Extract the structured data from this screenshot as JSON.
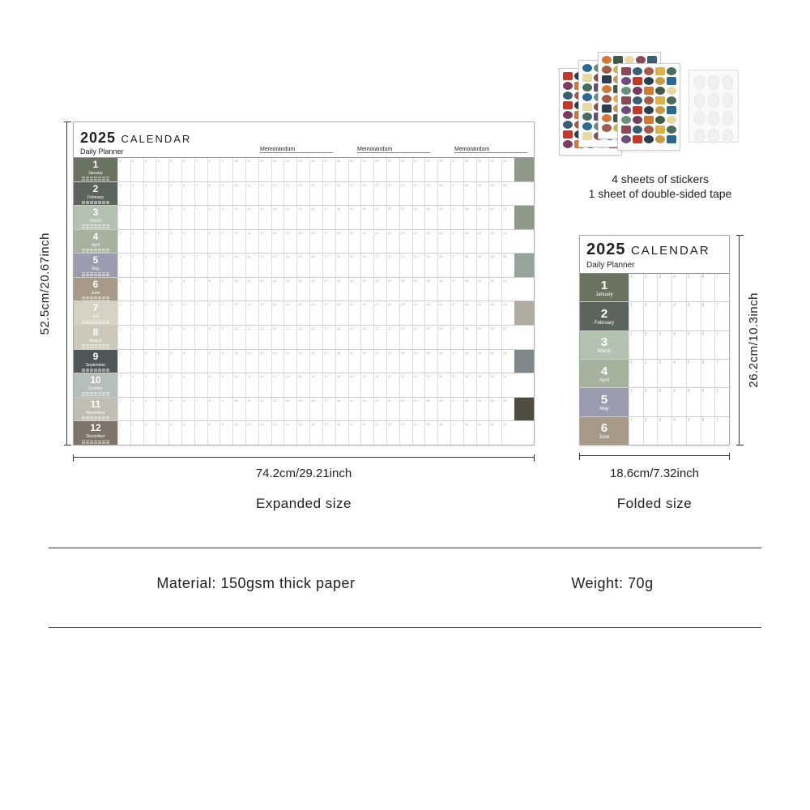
{
  "calendar": {
    "year": "2025",
    "title_word": "CALENDAR",
    "subtitle": "Daily Planner",
    "memorandum_label": "Memorandum",
    "months": [
      {
        "num": "1",
        "name": "January",
        "color": "#6a7360",
        "end": true,
        "end_color": "#8f9987"
      },
      {
        "num": "2",
        "name": "February",
        "color": "#5c645e",
        "end": false
      },
      {
        "num": "3",
        "name": "March",
        "color": "#b2c1b0",
        "end": true,
        "end_color": "#8f9987"
      },
      {
        "num": "4",
        "name": "April",
        "color": "#a5b29d",
        "end": false
      },
      {
        "num": "5",
        "name": "May",
        "color": "#9a9bae",
        "end": true,
        "end_color": "#97a49a"
      },
      {
        "num": "6",
        "name": "June",
        "color": "#a79a88",
        "end": false
      },
      {
        "num": "7",
        "name": "July",
        "color": "#d6d1c3",
        "end": true,
        "end_color": "#b1aca0"
      },
      {
        "num": "8",
        "name": "August",
        "color": "#cdc9ba",
        "end": false
      },
      {
        "num": "9",
        "name": "September",
        "color": "#4d5658",
        "end": true,
        "end_color": "#7e8789"
      },
      {
        "num": "10",
        "name": "October",
        "color": "#b5bfba",
        "end": false
      },
      {
        "num": "11",
        "name": "November",
        "color": "#c0beb3",
        "end": true,
        "end_color": "#514c42"
      },
      {
        "num": "12",
        "name": "December",
        "color": "#7e746a",
        "end": false
      }
    ],
    "folded_months": 6
  },
  "dimensions": {
    "expanded_height": "52.5cm/20.67inch",
    "expanded_width": "74.2cm/29.21inch",
    "expanded_label": "Expanded size",
    "folded_height": "26.2cm/10.3inch",
    "folded_width": "18.6cm/7.32inch",
    "folded_label": "Folded size"
  },
  "stickers": {
    "caption_line1": "4 sheets of stickers",
    "caption_line2": "1 sheet of double-sided tape",
    "palette": [
      "#c0392b",
      "#2c3e50",
      "#c79b4b",
      "#2b6a8e",
      "#6b8e7f",
      "#7b3b5e",
      "#d07a3a",
      "#405a48",
      "#e8d7a7",
      "#8a4a58",
      "#3a5f73",
      "#a25c4a",
      "#dbb24c",
      "#4a6b5d",
      "#6e4b7a"
    ]
  },
  "specs": {
    "material_label": "Material:",
    "material_value": "150gsm thick paper",
    "weight_label": "Weight:",
    "weight_value": "70g"
  },
  "style": {
    "text_color": "#222222",
    "divider_color": "#333333",
    "background": "#ffffff"
  }
}
